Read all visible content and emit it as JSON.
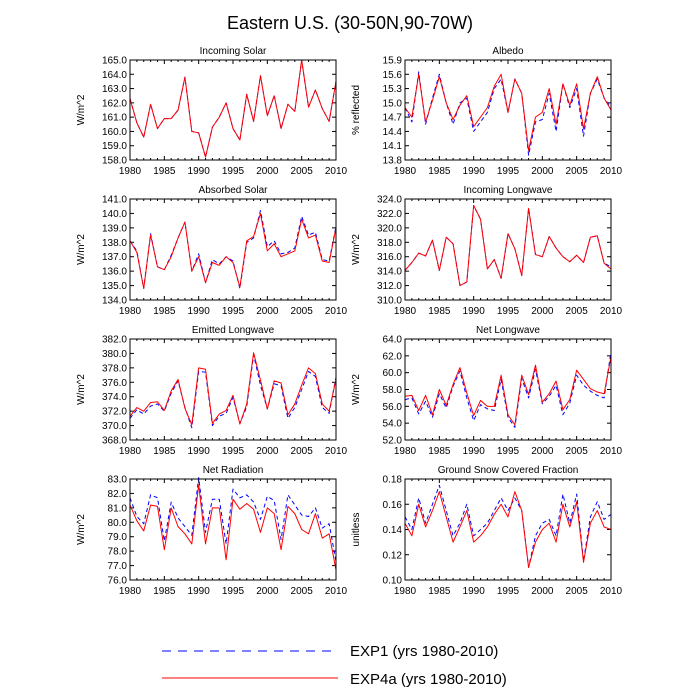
{
  "title": "Eastern U.S. (30-50N,90-70W)",
  "legend": [
    {
      "label": "EXP1 (yrs 1980-2010)",
      "color": "#0000ff",
      "style": "dashed"
    },
    {
      "label": "EXP4a (yrs 1980-2010)",
      "color": "#ff0000",
      "style": "solid"
    }
  ],
  "chart_data": [
    {
      "type": "line",
      "title": "Incoming Solar",
      "ylabel": "W/m^2",
      "ylim": [
        158.0,
        165.0
      ],
      "yticks": [
        158.0,
        159.0,
        160.0,
        161.0,
        162.0,
        163.0,
        164.0,
        165.0
      ],
      "xticks": [
        1980,
        1985,
        1990,
        1995,
        2000,
        2005,
        2010
      ],
      "xlim": [
        1980,
        2010
      ],
      "tick_decimals": 1,
      "series": [
        {
          "name": "EXP1",
          "values": [
            162.3,
            160.6,
            159.6,
            161.9,
            160.2,
            160.9,
            160.9,
            161.5,
            163.8,
            160.0,
            159.9,
            158.2,
            160.3,
            161.0,
            162.0,
            160.2,
            159.4,
            162.6,
            160.7,
            163.9,
            161.1,
            162.5,
            160.2,
            161.9,
            161.4,
            165.0,
            161.7,
            162.9,
            161.6,
            160.7,
            163.5
          ]
        },
        {
          "name": "EXP4a",
          "values": [
            162.3,
            160.6,
            159.6,
            161.9,
            160.2,
            160.9,
            160.9,
            161.5,
            163.8,
            160.0,
            159.9,
            158.2,
            160.3,
            161.0,
            162.0,
            160.2,
            159.4,
            162.6,
            160.7,
            163.9,
            161.1,
            162.5,
            160.2,
            161.9,
            161.4,
            165.0,
            161.7,
            162.9,
            161.6,
            160.7,
            163.5
          ]
        }
      ]
    },
    {
      "type": "line",
      "title": "Albedo",
      "ylabel": "% reflected",
      "ylim": [
        13.8,
        15.9
      ],
      "yticks": [
        13.8,
        14.1,
        14.4,
        14.7,
        15.0,
        15.3,
        15.6,
        15.9
      ],
      "xticks": [
        1980,
        1985,
        1990,
        1995,
        2000,
        2005,
        2010
      ],
      "xlim": [
        1980,
        2010
      ],
      "tick_decimals": 1,
      "series": [
        {
          "name": "EXP1",
          "values": [
            14.9,
            14.6,
            15.65,
            14.55,
            15.1,
            15.6,
            15.0,
            14.55,
            15.0,
            15.1,
            14.4,
            14.6,
            14.8,
            15.3,
            15.5,
            14.8,
            15.5,
            15.2,
            13.9,
            14.6,
            14.65,
            15.2,
            14.4,
            15.4,
            14.9,
            15.3,
            14.3,
            15.2,
            15.5,
            15.1,
            14.9
          ]
        },
        {
          "name": "EXP4a",
          "values": [
            14.9,
            14.7,
            15.6,
            14.6,
            15.05,
            15.55,
            15.0,
            14.65,
            14.95,
            15.15,
            14.5,
            14.7,
            14.9,
            15.35,
            15.6,
            14.8,
            15.5,
            15.2,
            14.0,
            14.7,
            14.8,
            15.3,
            14.55,
            15.4,
            14.95,
            15.4,
            14.45,
            15.2,
            15.55,
            15.1,
            14.85
          ]
        }
      ]
    },
    {
      "type": "line",
      "title": "Absorbed Solar",
      "ylabel": "W/m^2",
      "ylim": [
        134.0,
        141.0
      ],
      "yticks": [
        134.0,
        135.0,
        136.0,
        137.0,
        138.0,
        139.0,
        140.0,
        141.0
      ],
      "xticks": [
        1980,
        1985,
        1990,
        1995,
        2000,
        2005,
        2010
      ],
      "xlim": [
        1980,
        2010
      ],
      "tick_decimals": 1,
      "series": [
        {
          "name": "EXP1",
          "values": [
            138.1,
            137.4,
            134.8,
            138.6,
            136.3,
            136.1,
            137.1,
            138.3,
            139.4,
            136.0,
            137.2,
            135.2,
            136.8,
            136.5,
            137.0,
            136.7,
            134.8,
            138.0,
            138.3,
            140.2,
            137.7,
            138.1,
            137.2,
            137.3,
            137.6,
            139.8,
            138.5,
            138.7,
            136.8,
            136.7,
            139.1
          ]
        },
        {
          "name": "EXP4a",
          "values": [
            138.1,
            137.3,
            134.8,
            138.5,
            136.3,
            136.1,
            137.0,
            138.3,
            139.4,
            136.0,
            137.0,
            135.2,
            136.6,
            136.4,
            137.0,
            136.6,
            134.9,
            138.1,
            138.4,
            140.0,
            137.4,
            137.9,
            137.0,
            137.2,
            137.4,
            139.6,
            138.3,
            138.5,
            136.7,
            136.6,
            139.0
          ]
        }
      ]
    },
    {
      "type": "line",
      "title": "Incoming Longwave",
      "ylabel": "W/m^2",
      "ylim": [
        310.0,
        324.0
      ],
      "yticks": [
        310.0,
        312.0,
        314.0,
        316.0,
        318.0,
        320.0,
        322.0,
        324.0
      ],
      "xticks": [
        1980,
        1985,
        1990,
        1995,
        2000,
        2005,
        2010
      ],
      "xlim": [
        1980,
        2010
      ],
      "tick_decimals": 1,
      "series": [
        {
          "name": "EXP1",
          "values": [
            314.1,
            315.2,
            316.5,
            316.1,
            318.3,
            314.1,
            318.7,
            317.8,
            312.0,
            312.5,
            323.1,
            321.2,
            314.3,
            315.6,
            313.0,
            319.2,
            317.1,
            313.4,
            322.7,
            316.3,
            316.0,
            318.8,
            317.2,
            316.0,
            315.3,
            316.2,
            315.2,
            318.7,
            318.9,
            315.1,
            314.6
          ]
        },
        {
          "name": "EXP4a",
          "values": [
            314.1,
            315.2,
            316.5,
            316.1,
            318.3,
            314.1,
            318.7,
            317.8,
            312.0,
            312.5,
            323.1,
            321.2,
            314.3,
            315.6,
            313.0,
            319.2,
            317.1,
            313.4,
            322.7,
            316.3,
            316.0,
            318.8,
            317.2,
            316.0,
            315.3,
            316.2,
            315.2,
            318.7,
            318.9,
            315.1,
            314.3
          ]
        }
      ]
    },
    {
      "type": "line",
      "title": "Emitted Longwave",
      "ylabel": "W/m^2",
      "ylim": [
        368.0,
        382.0
      ],
      "yticks": [
        368.0,
        370.0,
        372.0,
        374.0,
        376.0,
        378.0,
        380.0,
        382.0
      ],
      "xticks": [
        1980,
        1985,
        1990,
        1995,
        2000,
        2005,
        2010
      ],
      "xlim": [
        1980,
        2010
      ],
      "tick_decimals": 1,
      "series": [
        {
          "name": "EXP1",
          "values": [
            371.0,
            372.2,
            371.6,
            372.7,
            373.0,
            372.0,
            374.5,
            376.2,
            372.5,
            369.7,
            377.5,
            377.4,
            370.0,
            371.3,
            371.7,
            373.9,
            370.3,
            372.6,
            379.8,
            375.6,
            372.3,
            375.8,
            375.5,
            371.0,
            372.5,
            375.0,
            377.5,
            376.8,
            372.5,
            371.7,
            376.7
          ]
        },
        {
          "name": "EXP4a",
          "values": [
            371.3,
            372.5,
            372.0,
            373.2,
            373.3,
            372.1,
            374.8,
            376.4,
            372.4,
            370.1,
            378.0,
            377.8,
            370.3,
            371.6,
            372.1,
            374.2,
            370.2,
            373.0,
            380.1,
            376.3,
            372.3,
            376.2,
            375.9,
            371.5,
            373.0,
            375.6,
            378.0,
            377.2,
            373.0,
            372.0,
            376.4
          ]
        }
      ]
    },
    {
      "type": "line",
      "title": "Net Longwave",
      "ylabel": "W/m^2",
      "ylim": [
        52.0,
        64.0
      ],
      "yticks": [
        52.0,
        54.0,
        56.0,
        58.0,
        60.0,
        62.0,
        64.0
      ],
      "xticks": [
        1980,
        1985,
        1990,
        1995,
        2000,
        2005,
        2010
      ],
      "xlim": [
        1980,
        2010
      ],
      "tick_decimals": 1,
      "series": [
        {
          "name": "EXP1",
          "values": [
            56.8,
            57.0,
            55.1,
            56.6,
            54.7,
            57.5,
            55.8,
            58.4,
            60.2,
            57.0,
            54.3,
            56.2,
            55.7,
            55.5,
            59.2,
            54.7,
            53.5,
            59.3,
            57.0,
            60.4,
            56.3,
            57.2,
            58.5,
            55.0,
            56.4,
            59.7,
            58.5,
            57.8,
            57.3,
            57.0,
            62.5
          ]
        },
        {
          "name": "EXP4a",
          "values": [
            57.2,
            57.3,
            55.5,
            57.3,
            55.0,
            58.0,
            56.1,
            58.6,
            60.6,
            57.6,
            54.9,
            56.7,
            56.0,
            56.0,
            59.7,
            55.0,
            53.8,
            59.7,
            57.4,
            60.9,
            56.5,
            57.5,
            59.0,
            55.6,
            56.8,
            60.3,
            59.2,
            58.1,
            57.7,
            57.5,
            61.9
          ]
        }
      ]
    },
    {
      "type": "line",
      "title": "Net Radiation",
      "ylabel": "W/m^2",
      "ylim": [
        76.0,
        83.0
      ],
      "yticks": [
        76.0,
        77.0,
        78.0,
        79.0,
        80.0,
        81.0,
        82.0,
        83.0
      ],
      "xticks": [
        1980,
        1985,
        1990,
        1995,
        2000,
        2005,
        2010
      ],
      "xlim": [
        1980,
        2010
      ],
      "tick_decimals": 1,
      "series": [
        {
          "name": "EXP1",
          "values": [
            81.7,
            80.4,
            79.9,
            81.9,
            81.7,
            78.7,
            81.4,
            80.3,
            79.7,
            79.1,
            83.1,
            79.3,
            81.6,
            81.6,
            78.5,
            82.3,
            81.7,
            81.9,
            81.4,
            80.2,
            81.8,
            81.5,
            78.8,
            81.9,
            81.2,
            80.5,
            80.4,
            81.0,
            79.6,
            79.9,
            77.3
          ]
        },
        {
          "name": "EXP4a",
          "values": [
            81.2,
            80.1,
            79.4,
            81.2,
            81.1,
            78.1,
            81.0,
            79.7,
            79.2,
            78.5,
            82.6,
            78.5,
            81.0,
            81.0,
            77.4,
            81.6,
            80.9,
            81.3,
            80.9,
            79.3,
            81.0,
            80.6,
            78.1,
            81.1,
            80.6,
            79.5,
            79.2,
            80.6,
            78.9,
            79.2,
            76.7
          ]
        }
      ]
    },
    {
      "type": "line",
      "title": "Ground Snow Covered Fraction",
      "ylabel": "unitless",
      "ylim": [
        0.1,
        0.18
      ],
      "yticks": [
        0.1,
        0.12,
        0.14,
        0.16,
        0.18
      ],
      "xticks": [
        1980,
        1985,
        1990,
        1995,
        2000,
        2005,
        2010
      ],
      "xlim": [
        1980,
        2010
      ],
      "tick_decimals": 2,
      "series": [
        {
          "name": "EXP1",
          "values": [
            0.15,
            0.14,
            0.165,
            0.145,
            0.16,
            0.175,
            0.155,
            0.135,
            0.145,
            0.16,
            0.135,
            0.14,
            0.145,
            0.155,
            0.165,
            0.155,
            0.165,
            0.155,
            0.11,
            0.135,
            0.145,
            0.148,
            0.135,
            0.168,
            0.145,
            0.168,
            0.115,
            0.15,
            0.162,
            0.148,
            0.152
          ]
        },
        {
          "name": "EXP4a",
          "values": [
            0.145,
            0.135,
            0.16,
            0.142,
            0.155,
            0.17,
            0.15,
            0.13,
            0.142,
            0.155,
            0.13,
            0.135,
            0.142,
            0.152,
            0.16,
            0.15,
            0.17,
            0.155,
            0.11,
            0.13,
            0.14,
            0.145,
            0.13,
            0.16,
            0.142,
            0.162,
            0.114,
            0.145,
            0.155,
            0.142,
            0.14
          ]
        }
      ]
    }
  ]
}
